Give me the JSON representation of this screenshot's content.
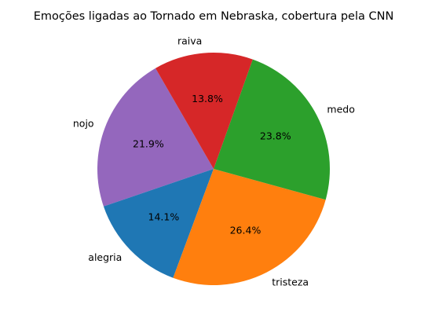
{
  "chart_data": {
    "type": "pie",
    "title": "Emoções ligadas ao Tornado em Nebraska, cobertura pela CNN",
    "start_angle_deg": 120,
    "direction": "counterclockwise",
    "slices": [
      {
        "label": "nojo",
        "value": 21.9,
        "pct_label": "21.9%",
        "color": "#9467bd"
      },
      {
        "label": "alegria",
        "value": 14.1,
        "pct_label": "14.1%",
        "color": "#1f77b4"
      },
      {
        "label": "tristeza",
        "value": 26.4,
        "pct_label": "26.4%",
        "color": "#ff7f0e"
      },
      {
        "label": "medo",
        "value": 23.8,
        "pct_label": "23.8%",
        "color": "#2ca02c"
      },
      {
        "label": "raiva",
        "value": 13.8,
        "pct_label": "13.8%",
        "color": "#d62728"
      }
    ]
  }
}
